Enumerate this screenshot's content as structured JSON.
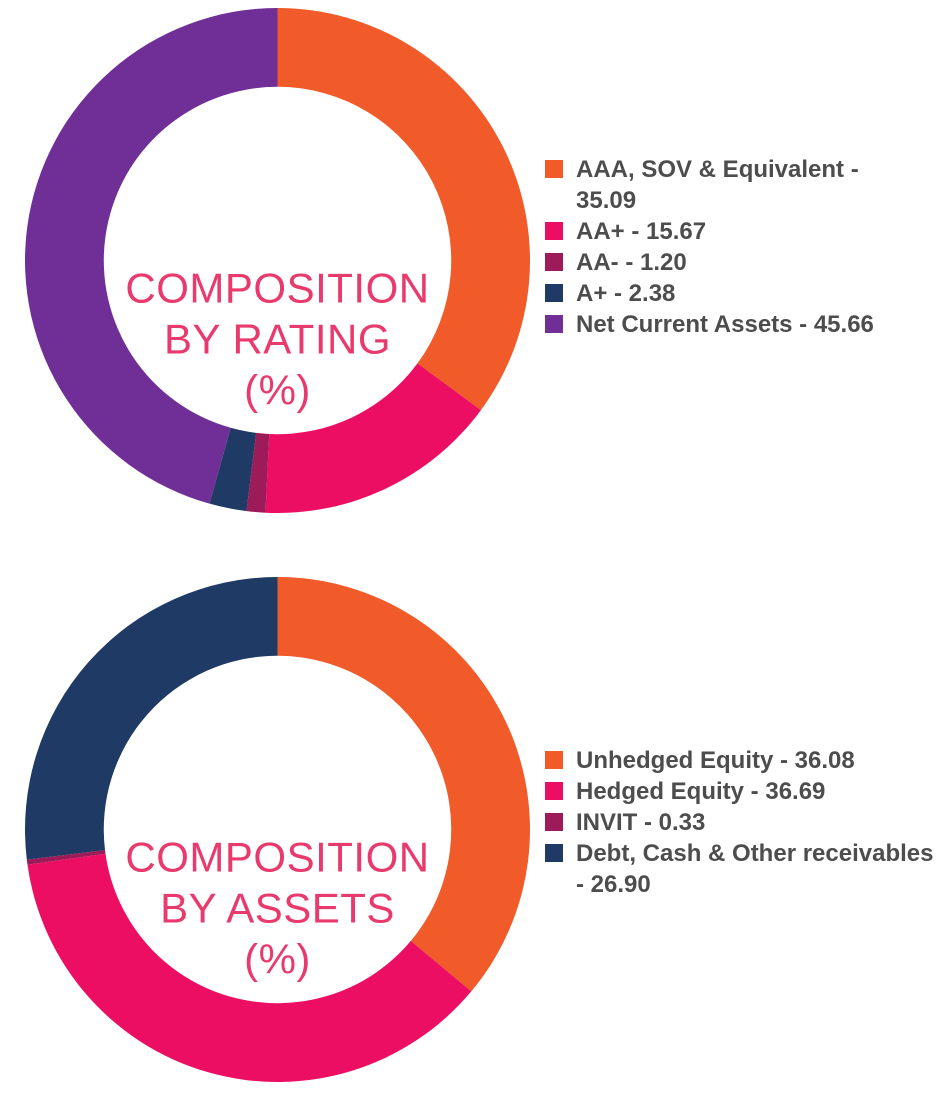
{
  "page": {
    "background": "#FFFFFF",
    "center_label_color": "#E93A6D",
    "legend_text_color": "#4D4D4D"
  },
  "chart_data": [
    {
      "type": "pie",
      "subtype": "donut",
      "title": "COMPOSITION BY RATING (%)",
      "center_label_lines": [
        "COMPOSITION",
        "BY RATING",
        "(%)"
      ],
      "unit": "%",
      "legend_position": "right",
      "start_angle_deg": 0,
      "direction": "clockwise",
      "inner_radius_ratio": 0.688,
      "slices": [
        {
          "label": "AAA, SOV & Equivalent",
          "value": 35.09,
          "color": "#F15A29",
          "legend_lines": [
            "AAA, SOV & Equivalent -",
            "35.09"
          ]
        },
        {
          "label": "AA+",
          "value": 15.67,
          "color": "#EC0E63",
          "legend_lines": [
            "AA+ - 15.67"
          ]
        },
        {
          "label": "AA-",
          "value": 1.2,
          "color": "#9E1B5A",
          "legend_lines": [
            "AA- - 1.20"
          ]
        },
        {
          "label": "A+",
          "value": 2.38,
          "color": "#1F3A64",
          "legend_lines": [
            "A+ - 2.38"
          ]
        },
        {
          "label": "Net Current Assets",
          "value": 45.66,
          "color": "#6F2F97",
          "legend_lines": [
            "Net Current Assets - 45.66"
          ]
        }
      ]
    },
    {
      "type": "pie",
      "subtype": "donut",
      "title": "COMPOSITION BY ASSETS (%)",
      "center_label_lines": [
        "COMPOSITION",
        "BY ASSETS",
        "(%)"
      ],
      "unit": "%",
      "legend_position": "right",
      "start_angle_deg": 0,
      "direction": "clockwise",
      "inner_radius_ratio": 0.688,
      "slices": [
        {
          "label": "Unhedged Equity",
          "value": 36.08,
          "color": "#F15A29",
          "legend_lines": [
            "Unhedged Equity - 36.08"
          ]
        },
        {
          "label": "Hedged Equity",
          "value": 36.69,
          "color": "#EC0E63",
          "legend_lines": [
            "Hedged Equity - 36.69"
          ]
        },
        {
          "label": "INVIT",
          "value": 0.33,
          "color": "#9E1B5A",
          "legend_lines": [
            "INVIT - 0.33"
          ]
        },
        {
          "label": "Debt, Cash & Other receivables",
          "value": 26.9,
          "color": "#1F3A64",
          "legend_lines": [
            "Debt, Cash & Other receivables",
            "- 26.90"
          ]
        }
      ]
    }
  ]
}
